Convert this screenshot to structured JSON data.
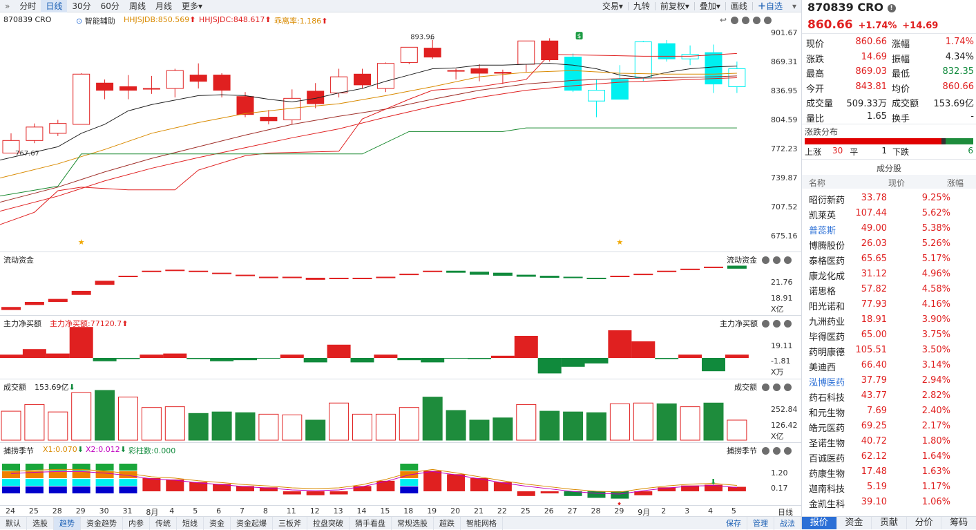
{
  "toolbar": {
    "periods": [
      "分时",
      "日线",
      "30分",
      "60分",
      "周线",
      "月线",
      "更多▾"
    ],
    "selected": "日线",
    "right": [
      "交易▾",
      "九转",
      "前复权▾",
      "叠加▾",
      "画线"
    ],
    "add_watch": "自选",
    "expand_icon": "double-chevron-right-icon"
  },
  "chart": {
    "code_title": "870839 CRO",
    "assist": "智能辅助",
    "ind1": "HHJSJDB:850.569",
    "ind2": "HHJSJDC:848.617",
    "ind3": "乖离率:1.186",
    "high_label": "893.96",
    "low_label": "767.67",
    "y_ticks": [
      "901.67",
      "869.31",
      "836.95",
      "804.59",
      "772.23",
      "739.87",
      "707.52",
      "675.16"
    ]
  },
  "flow": {
    "title": "流动资金",
    "title_right": "流动资金",
    "ticks": [
      "21.76",
      "18.91"
    ],
    "unit": "X亿"
  },
  "main_net": {
    "title": "主力净买额",
    "value": "主力净买额:77120.7",
    "title_right": "主力净买额",
    "ticks": [
      "19.11",
      "-1.81"
    ],
    "unit": "X万"
  },
  "volume": {
    "title": "成交额",
    "value": "153.69亿",
    "title_right": "成交额",
    "ticks": [
      "252.84",
      "126.42"
    ],
    "unit": "X亿"
  },
  "season": {
    "title": "捕捞季节",
    "x1": "X1:0.070",
    "x2": "X2:0.012",
    "bars": "彩柱数:0.000",
    "title_right": "捕捞季节",
    "ticks": [
      "1.20",
      "0.17"
    ]
  },
  "x_labels": [
    "24",
    "25",
    "28",
    "29",
    "30",
    "31",
    "8月",
    "4",
    "5",
    "6",
    "7",
    "8",
    "11",
    "12",
    "13",
    "14",
    "15",
    "18",
    "19",
    "20",
    "21",
    "22",
    "25",
    "26",
    "27",
    "28",
    "29",
    "9月",
    "2",
    "3",
    "4",
    "5"
  ],
  "bottom_tabs": [
    "默认",
    "选股",
    "趋势",
    "资金趋势",
    "内参",
    "传统",
    "短线",
    "资金",
    "资金起爆",
    "三板斧",
    "拉盘突破",
    "猜手看盘",
    "常规选股",
    "超跌",
    "智能网格"
  ],
  "bottom_selected": "趋势",
  "bottom_right": [
    "保存",
    "管理",
    "战法"
  ],
  "day_label": "日线",
  "quote": {
    "name": "870839 CRO",
    "price": "860.66",
    "change_pct": "+1.74%",
    "change": "+14.69",
    "rows": [
      [
        "现价",
        "860.66",
        "涨幅",
        "1.74%"
      ],
      [
        "涨跌",
        "14.69",
        "振幅",
        "4.34%"
      ],
      [
        "最高",
        "869.03",
        "最低",
        "832.35"
      ],
      [
        "今开",
        "843.81",
        "均价",
        "860.66"
      ],
      [
        "成交量",
        "509.33万",
        "成交额",
        "153.69亿"
      ],
      [
        "量比",
        "1.65",
        "换手",
        "-"
      ]
    ],
    "dist_title": "涨跌分布",
    "up_label": "上涨",
    "up": "30",
    "flat_label": "平",
    "flat": "1",
    "down_label": "下跌",
    "down": "6",
    "comp_title": "成分股",
    "head": [
      "名称",
      "现价",
      "涨幅"
    ],
    "stocks": [
      [
        "昭衍新药",
        "33.78",
        "9.25%"
      ],
      [
        "凯莱英",
        "107.44",
        "5.62%"
      ],
      [
        "普蕊斯",
        "49.00",
        "5.38%"
      ],
      [
        "博腾股份",
        "26.03",
        "5.26%"
      ],
      [
        "泰格医药",
        "65.65",
        "5.17%"
      ],
      [
        "康龙化成",
        "31.12",
        "4.96%"
      ],
      [
        "诺思格",
        "57.82",
        "4.58%"
      ],
      [
        "阳光诺和",
        "77.93",
        "4.16%"
      ],
      [
        "九洲药业",
        "18.91",
        "3.90%"
      ],
      [
        "毕得医药",
        "65.00",
        "3.75%"
      ],
      [
        "药明康德",
        "105.51",
        "3.50%"
      ],
      [
        "美迪西",
        "66.40",
        "3.14%"
      ],
      [
        "泓博医药",
        "37.79",
        "2.94%"
      ],
      [
        "药石科技",
        "43.77",
        "2.82%"
      ],
      [
        "和元生物",
        "7.69",
        "2.40%"
      ],
      [
        "皓元医药",
        "69.25",
        "2.17%"
      ],
      [
        "圣诺生物",
        "40.72",
        "1.80%"
      ],
      [
        "百诚医药",
        "62.12",
        "1.64%"
      ],
      [
        "药康生物",
        "17.48",
        "1.63%"
      ],
      [
        "迦南科技",
        "5.19",
        "1.17%"
      ],
      [
        "金凯生科",
        "39.10",
        "1.06%"
      ]
    ],
    "tabs": [
      "报价",
      "资金",
      "贡献",
      "分价",
      "筹码"
    ]
  },
  "colors": {
    "up": "#e02020",
    "down": "#108a3c",
    "cyan": "#00f0f0",
    "accent": "#1a5fb4"
  }
}
